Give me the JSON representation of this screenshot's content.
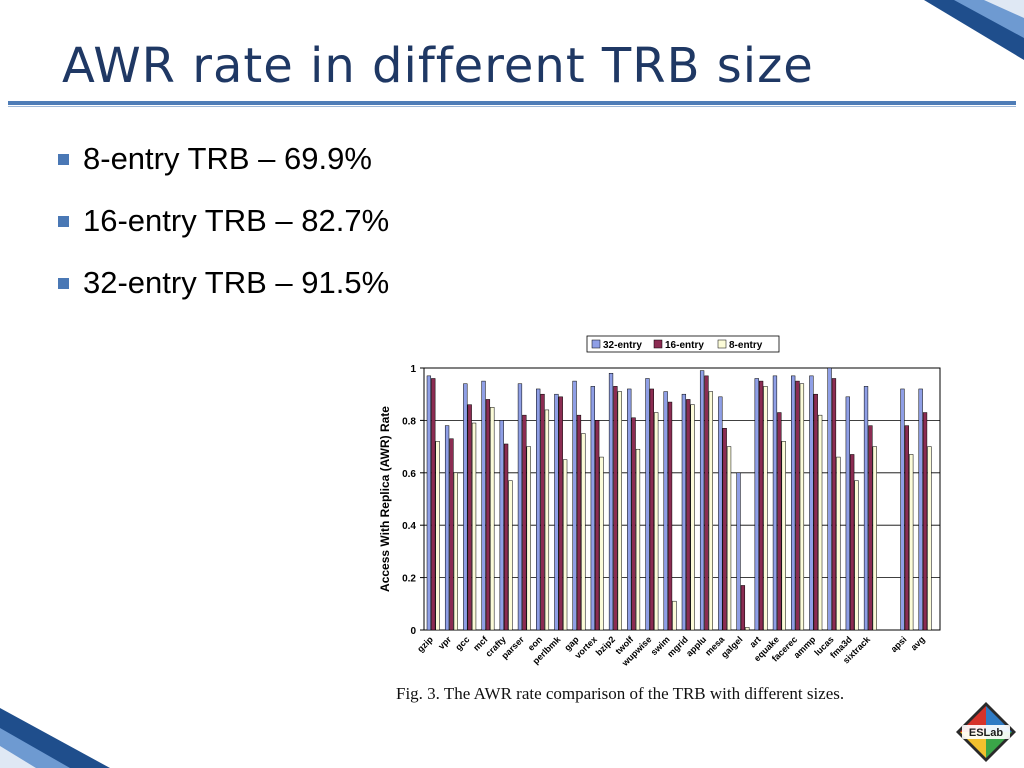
{
  "slide": {
    "title": "AWR rate in different TRB size",
    "bullets": [
      "8-entry TRB – 69.9%",
      "16-entry TRB – 82.7%",
      "32-entry TRB – 91.5%"
    ],
    "caption": "Fig. 3.    The AWR rate comparison of the TRB with different sizes.",
    "logo_text": "ESLab"
  },
  "colors": {
    "title": "#1f3864",
    "rule": "#4f7db7",
    "bullet": "#4a78b5",
    "series_32": "#8f9fe6",
    "series_16": "#8b2c52",
    "series_8": "#fbfbd8"
  },
  "chart_data": {
    "type": "bar",
    "title": "",
    "xlabel": "",
    "ylabel": "Access With Replica (AWR) Rate",
    "ylim": [
      0,
      1
    ],
    "yticks": [
      "0",
      "0.2",
      "0.4",
      "0.6",
      "0.8",
      "1"
    ],
    "grid": true,
    "legend_position": "top",
    "categories": [
      "gzip",
      "vpr",
      "gcc",
      "mcf",
      "crafty",
      "parser",
      "eon",
      "perlbmk",
      "gap",
      "vortex",
      "bzip2",
      "twolf",
      "wupwise",
      "swim",
      "mgrid",
      "applu",
      "mesa",
      "galgel",
      "art",
      "equake",
      "facerec",
      "ammp",
      "lucas",
      "fma3d",
      "sixtrack",
      "apsi",
      "avg"
    ],
    "category_gaps": [
      25
    ],
    "series": [
      {
        "name": "32-entry",
        "values": [
          0.97,
          0.78,
          0.94,
          0.95,
          0.8,
          0.94,
          0.92,
          0.9,
          0.95,
          0.93,
          0.98,
          0.92,
          0.96,
          0.91,
          0.9,
          0.99,
          0.89,
          0.6,
          0.96,
          0.97,
          0.97,
          0.97,
          1.0,
          0.89,
          0.93,
          0.92,
          0.92
        ]
      },
      {
        "name": "16-entry",
        "values": [
          0.96,
          0.73,
          0.86,
          0.88,
          0.71,
          0.82,
          0.9,
          0.89,
          0.82,
          0.8,
          0.93,
          0.81,
          0.92,
          0.87,
          0.88,
          0.97,
          0.77,
          0.17,
          0.95,
          0.83,
          0.95,
          0.9,
          0.96,
          0.67,
          0.78,
          0.78,
          0.83
        ]
      },
      {
        "name": "8-entry",
        "values": [
          0.72,
          0.6,
          0.79,
          0.85,
          0.57,
          0.7,
          0.84,
          0.65,
          0.75,
          0.66,
          0.91,
          0.69,
          0.83,
          0.11,
          0.86,
          0.91,
          0.7,
          0.01,
          0.93,
          0.72,
          0.94,
          0.82,
          0.66,
          0.57,
          0.7,
          0.67,
          0.7
        ]
      }
    ]
  }
}
